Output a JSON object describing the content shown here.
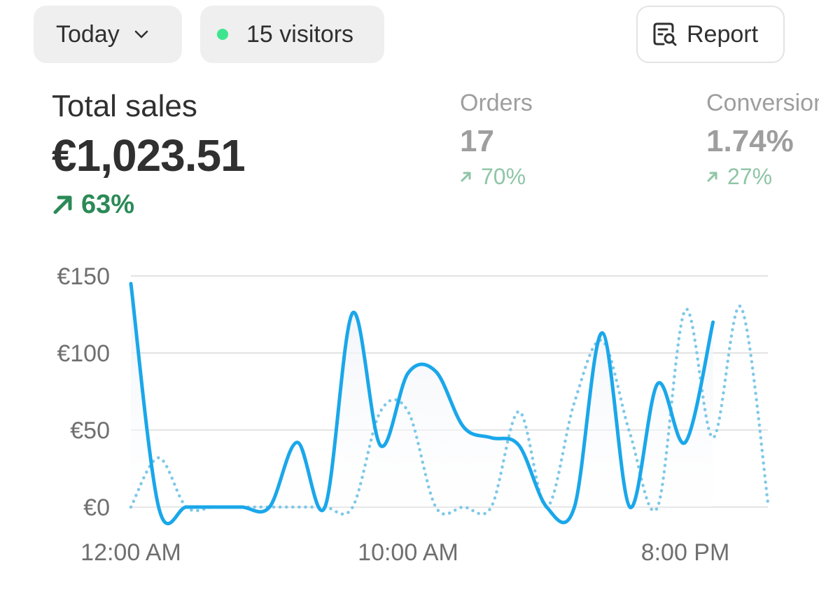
{
  "toolbar": {
    "date_label": "Today",
    "visitors_label": "15 visitors",
    "report_label": "Report",
    "live_dot_color": "#3ee58f"
  },
  "metrics": {
    "total_sales": {
      "label": "Total sales",
      "value": "€1,023.51",
      "change": "63%",
      "trend": "up"
    },
    "orders": {
      "label": "Orders",
      "value": "17",
      "change": "70%",
      "trend": "up"
    },
    "conversion": {
      "label": "Conversion",
      "value": "1.74%",
      "change": "27%",
      "trend": "up"
    }
  },
  "icons": {
    "date_dropdown": "chevron-down-icon",
    "report": "report-search-icon",
    "trend": "arrow-up-right-icon"
  },
  "chart_data": {
    "type": "line",
    "title": "",
    "xlabel": "",
    "ylabel": "",
    "ylim": [
      0,
      150
    ],
    "yticks": [
      {
        "value": 0,
        "label": "€0"
      },
      {
        "value": 50,
        "label": "€50"
      },
      {
        "value": 100,
        "label": "€100"
      },
      {
        "value": 150,
        "label": "€150"
      }
    ],
    "xlim": [
      0,
      23
    ],
    "xticks": [
      {
        "value": 0,
        "label": "12:00 AM"
      },
      {
        "value": 10,
        "label": "10:00 AM"
      },
      {
        "value": 20,
        "label": "8:00 PM"
      }
    ],
    "grid": true,
    "series": [
      {
        "style": "solid",
        "color": "#1aa7ea",
        "x": [
          0,
          1,
          2,
          3,
          4,
          5,
          6,
          7,
          8,
          9,
          10,
          11,
          12,
          13,
          14,
          15,
          16,
          17,
          18,
          19,
          20,
          21
        ],
        "values": [
          145,
          0,
          0,
          0,
          0,
          0,
          42,
          0,
          126,
          40,
          87,
          88,
          52,
          45,
          40,
          0,
          0,
          113,
          0,
          80,
          42,
          120
        ]
      },
      {
        "style": "dotted",
        "color": "#7ec8e8",
        "x": [
          0,
          1,
          2,
          3,
          4,
          5,
          6,
          7,
          8,
          9,
          10,
          11,
          12,
          13,
          14,
          15,
          16,
          17,
          18,
          19,
          20,
          21,
          22,
          23
        ],
        "values": [
          0,
          32,
          0,
          0,
          0,
          0,
          0,
          0,
          0,
          62,
          62,
          0,
          0,
          0,
          62,
          0,
          68,
          108,
          48,
          0,
          128,
          45,
          130,
          0
        ]
      }
    ]
  }
}
